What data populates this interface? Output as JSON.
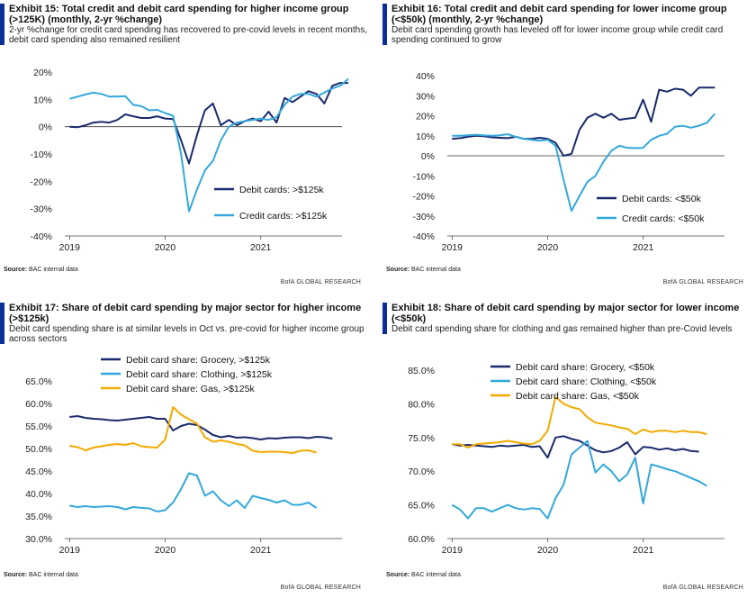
{
  "colors": {
    "navy": "#1a2a6c",
    "cyan": "#34a8dc",
    "gold": "#f2a900",
    "accent": "#0a2f9a"
  },
  "footer": {
    "source_label": "Source:",
    "source_text": "BAC internal data",
    "brand": "BofA GLOBAL RESEARCH"
  },
  "chart_data": [
    {
      "type": "line",
      "title": "Exhibit 15: Total credit and debit card spending for higher income group (>125K) (monthly, 2-yr %change)",
      "subtitle": "2-yr %change for credit card spending has recovered to pre-covid levels in recent months, debit card spending also remained resilient",
      "x_start": 2019.0,
      "x_step": 0.0833,
      "xlim": [
        2018.95,
        2021.85
      ],
      "ylim": [
        -40,
        20
      ],
      "x_ticks": [
        2019,
        2020,
        2021
      ],
      "x_tick_labels": [
        "2019",
        "2020",
        "2021"
      ],
      "y_ticks": [
        -40,
        -30,
        -20,
        -10,
        0,
        10,
        20
      ],
      "y_tick_labels": [
        "-40%",
        "-30%",
        "-20%",
        "-10%",
        "0%",
        "10%",
        "20%"
      ],
      "zero_line": true,
      "legend_position": "bottom-right",
      "series": [
        {
          "name": "Debit cards: >$125k",
          "color_key": "navy",
          "values": [
            0,
            -0.2,
            0.5,
            1.5,
            1.8,
            1.5,
            2.5,
            4.5,
            3.8,
            3.2,
            3.2,
            3.8,
            3,
            2.8,
            -5,
            -13.5,
            -3,
            6,
            8.5,
            0.5,
            2.5,
            0.5,
            2,
            3,
            2,
            5.5,
            1.5,
            10.5,
            9,
            11,
            13,
            12,
            8.5,
            15,
            16,
            16
          ]
        },
        {
          "name": "Credit cards: >$125k",
          "color_key": "cyan",
          "values": [
            10.2,
            11,
            11.8,
            12.5,
            12,
            11,
            11,
            11.2,
            8,
            7.5,
            6,
            6.2,
            5,
            4,
            -10,
            -31,
            -23,
            -16,
            -12.5,
            -5,
            0,
            1.5,
            2,
            2.5,
            3,
            2.5,
            3.5,
            8,
            11,
            12,
            12,
            11,
            12.5,
            14,
            15,
            17.5
          ]
        }
      ]
    },
    {
      "type": "line",
      "title": "Exhibit 16: Total credit and debit card spending for lower income group (<$50k) (monthly, 2-yr %change)",
      "subtitle": "Debit card spending growth has leveled off for lower income group while credit card spending continued to grow",
      "x_start": 2019.0,
      "x_step": 0.0833,
      "xlim": [
        2018.95,
        2021.85
      ],
      "ylim": [
        -40,
        40
      ],
      "x_ticks": [
        2019,
        2020,
        2021
      ],
      "x_tick_labels": [
        "2019",
        "2020",
        "2021"
      ],
      "y_ticks": [
        -40,
        -30,
        -20,
        -10,
        0,
        10,
        20,
        30,
        40
      ],
      "y_tick_labels": [
        "-40%",
        "-30%",
        "-20%",
        "-10%",
        "0%",
        "10%",
        "20%",
        "30%",
        "40%"
      ],
      "zero_line": true,
      "legend_position": "bottom-right",
      "series": [
        {
          "name": "Debit cards: <$50k",
          "color_key": "navy",
          "values": [
            8.5,
            8.8,
            9.5,
            10,
            9.8,
            9.2,
            9,
            8.8,
            9.5,
            8.5,
            8.5,
            9,
            8.5,
            6.5,
            0,
            1,
            13,
            19,
            21,
            19,
            21,
            18,
            18.5,
            19,
            28,
            17,
            33,
            32,
            33.5,
            33,
            30,
            34,
            34,
            34
          ]
        },
        {
          "name": "Credit cards: <$50k",
          "color_key": "cyan",
          "values": [
            10,
            10,
            10.2,
            10.5,
            10.2,
            10,
            10.2,
            10.8,
            9.5,
            8.5,
            8,
            7.5,
            8,
            5,
            -12,
            -27.5,
            -20,
            -13,
            -10,
            -3,
            2.5,
            5,
            4,
            3.8,
            4,
            8,
            10,
            11,
            14.5,
            15,
            14,
            15,
            16.5,
            21
          ]
        }
      ]
    },
    {
      "type": "line",
      "title": "Exhibit 17: Share of debit card spending by major sector for higher income (>$125k)",
      "subtitle": "Debit card spending share is at similar levels in Oct vs. pre-covid for higher income group across sectors",
      "x_start": 2019.0,
      "x_step": 0.0833,
      "xlim": [
        2018.95,
        2021.85
      ],
      "ylim": [
        30,
        65
      ],
      "x_ticks": [
        2019,
        2020,
        2021
      ],
      "x_tick_labels": [
        "2019",
        "2020",
        "2021"
      ],
      "y_ticks": [
        30,
        35,
        40,
        45,
        50,
        55,
        60,
        65
      ],
      "y_tick_labels": [
        "30.0%",
        "35.0%",
        "40.0%",
        "45.0%",
        "50.0%",
        "55.0%",
        "60.0%",
        "65.0%"
      ],
      "zero_line": false,
      "legend_position": "top-center",
      "series": [
        {
          "name": "Debit card share: Grocery, >$125k",
          "color_key": "navy",
          "values": [
            57,
            57.2,
            56.8,
            56.6,
            56.5,
            56.3,
            56.2,
            56.4,
            56.6,
            56.8,
            57,
            56.6,
            56.6,
            54,
            55,
            55.5,
            55.2,
            54.2,
            53,
            52.5,
            52.8,
            52.4,
            52.5,
            52.3,
            52,
            52.3,
            52.2,
            52.4,
            52.5,
            52.5,
            52.3,
            52.6,
            52.5,
            52.2
          ]
        },
        {
          "name": "Debit card share: Clothing, >$125k",
          "color_key": "cyan",
          "values": [
            37.3,
            37,
            37.2,
            37,
            37.1,
            37.2,
            37,
            36.5,
            37,
            36.8,
            36.7,
            36,
            36.3,
            38,
            41,
            44.5,
            44,
            39.5,
            40.5,
            38.5,
            37.2,
            38.5,
            36.8,
            39.5,
            39,
            38.6,
            38,
            38.5,
            37.5,
            37.5,
            38,
            36.8
          ]
        },
        {
          "name": "Debit card share: Gas, >$125k",
          "color_key": "gold",
          "values": [
            50.6,
            50.3,
            49.6,
            50.2,
            50.5,
            50.8,
            51,
            50.8,
            51.2,
            50.5,
            50.3,
            50.2,
            52,
            59.2,
            57.5,
            56.5,
            55.5,
            52.5,
            51.5,
            51.8,
            51.5,
            51,
            50.7,
            49.5,
            49.2,
            49.3,
            49.3,
            49.2,
            49,
            49.5,
            49.6,
            49.1
          ]
        }
      ]
    },
    {
      "type": "line",
      "title": "Exhibit 18: Share of debit card spending by major sector for lower income (<$50k)",
      "subtitle": "Debit card spending share for clothing and gas remained higher than pre-Covid levels",
      "x_start": 2019.0,
      "x_step": 0.0833,
      "xlim": [
        2018.95,
        2021.85
      ],
      "ylim": [
        60,
        85
      ],
      "x_ticks": [
        2019,
        2020,
        2021
      ],
      "x_tick_labels": [
        "2019",
        "2020",
        "2021"
      ],
      "y_ticks": [
        60,
        65,
        70,
        75,
        80,
        85
      ],
      "y_tick_labels": [
        "60.0%",
        "65.0%",
        "70.0%",
        "75.0%",
        "80.0%",
        "85.0%"
      ],
      "zero_line": false,
      "legend_position": "top-center",
      "series": [
        {
          "name": "Debit card share: Grocery, <$50k",
          "color_key": "navy",
          "values": [
            74,
            73.8,
            73.9,
            73.8,
            73.7,
            73.6,
            73.8,
            73.7,
            73.8,
            73.9,
            73.6,
            73.7,
            72,
            75,
            75.2,
            74.8,
            74.5,
            73.8,
            73.1,
            72.8,
            73,
            73.5,
            74.3,
            72.5,
            73.6,
            73.5,
            73.2,
            73.4,
            73.1,
            73.3,
            73,
            72.9
          ]
        },
        {
          "name": "Debit card share: Clothing, <$50k",
          "color_key": "cyan",
          "values": [
            65,
            64.3,
            63,
            64.5,
            64.5,
            64,
            64.5,
            65,
            64.5,
            64.3,
            64.5,
            64.4,
            63,
            66,
            68,
            72.5,
            73.5,
            74.5,
            69.8,
            71,
            70,
            68.5,
            69.5,
            72,
            65.2,
            71,
            70.7,
            70.3,
            70,
            69.5,
            69,
            68.5,
            67.8
          ]
        },
        {
          "name": "Debit card share: Gas, <$50k",
          "color_key": "gold",
          "values": [
            74,
            74,
            73.5,
            74,
            74.1,
            74.2,
            74.3,
            74.5,
            74.3,
            74.1,
            74,
            74.5,
            76,
            81,
            80,
            79.5,
            79.2,
            78,
            77.2,
            77,
            76.8,
            76.5,
            76.3,
            75.5,
            76.2,
            75.8,
            76,
            76,
            75.8,
            76,
            75.8,
            75.8,
            75.5
          ]
        }
      ]
    }
  ]
}
